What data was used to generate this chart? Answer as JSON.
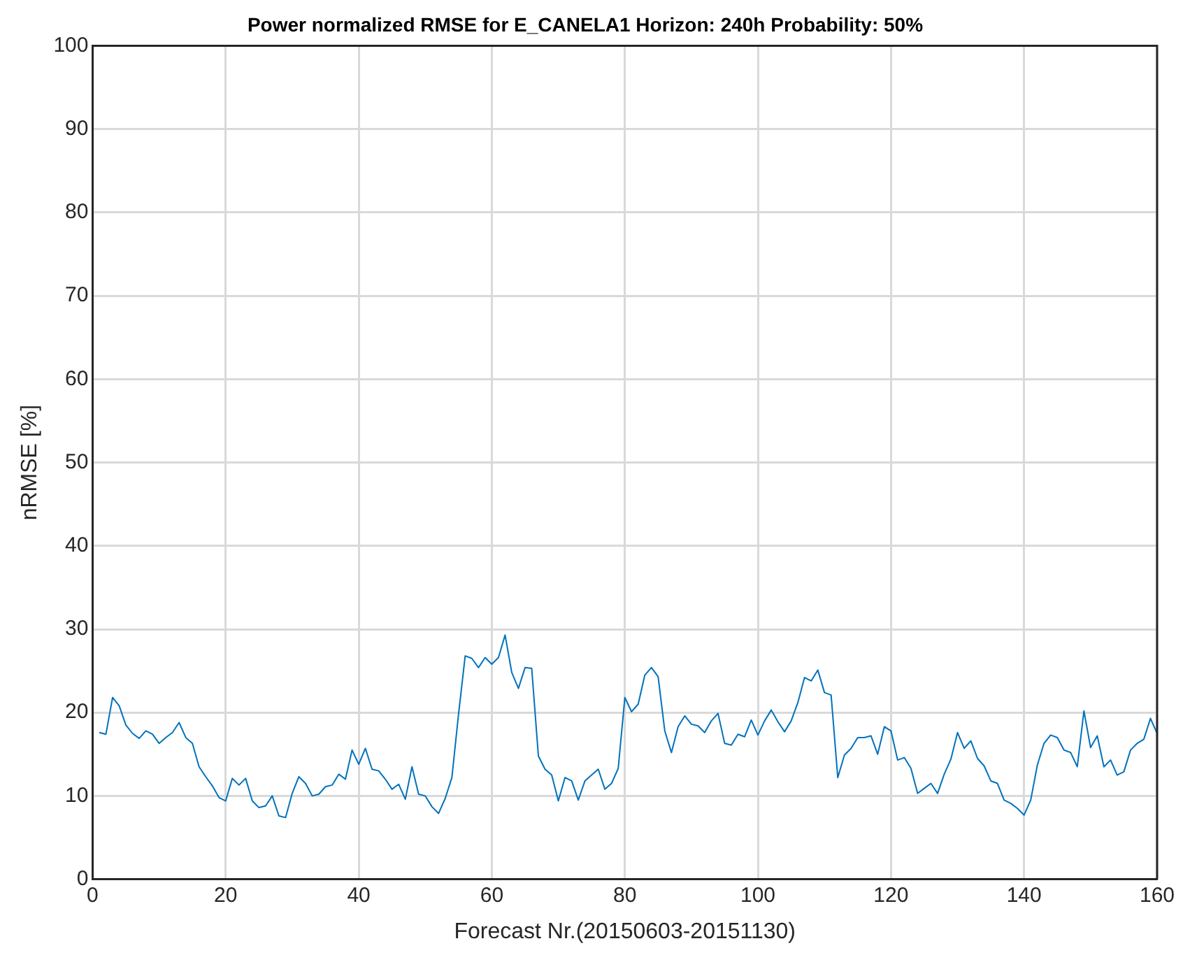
{
  "chart_data": {
    "type": "line",
    "title": "Power normalized RMSE for E_CANELA1 Horizon: 240h Probability: 50%",
    "xlabel": "Forecast Nr.(20150603-20151130)",
    "ylabel": "nRMSE [%]",
    "x": [
      1,
      2,
      3,
      4,
      5,
      6,
      7,
      8,
      9,
      10,
      11,
      12,
      13,
      14,
      15,
      16,
      17,
      18,
      19,
      20,
      21,
      22,
      23,
      24,
      25,
      26,
      27,
      28,
      29,
      30,
      31,
      32,
      33,
      34,
      35,
      36,
      37,
      38,
      39,
      40,
      41,
      42,
      43,
      44,
      45,
      46,
      47,
      48,
      49,
      50,
      51,
      52,
      53,
      54,
      55,
      56,
      57,
      58,
      59,
      60,
      61,
      62,
      63,
      64,
      65,
      66,
      67,
      68,
      69,
      70,
      71,
      72,
      73,
      74,
      75,
      76,
      77,
      78,
      79,
      80,
      81,
      82,
      83,
      84,
      85,
      86,
      87,
      88,
      89,
      90,
      91,
      92,
      93,
      94,
      95,
      96,
      97,
      98,
      99,
      100,
      101,
      102,
      103,
      104,
      105,
      106,
      107,
      108,
      109,
      110,
      111,
      112,
      113,
      114,
      115,
      116,
      117,
      118,
      119,
      120,
      121,
      122,
      123,
      124,
      125,
      126,
      127,
      128,
      129,
      130,
      131,
      132,
      133,
      134,
      135,
      136,
      137,
      138,
      139,
      140,
      141,
      142,
      143,
      144,
      145,
      146,
      147,
      148,
      149,
      150,
      151,
      152,
      153,
      154,
      155,
      156,
      157,
      158,
      159,
      160
    ],
    "series": [
      {
        "color": "#0072bd",
        "values": [
          17.6,
          17.4,
          21.8,
          20.8,
          18.5,
          17.5,
          16.9,
          17.8,
          17.4,
          16.3,
          17.0,
          17.6,
          18.8,
          17.0,
          16.3,
          13.5,
          12.3,
          11.2,
          9.8,
          9.4,
          12.1,
          11.3,
          12.1,
          9.4,
          8.6,
          8.8,
          10.0,
          7.6,
          7.4,
          10.3,
          12.3,
          11.5,
          10.0,
          10.2,
          11.1,
          11.3,
          12.6,
          12.0,
          15.5,
          13.8,
          15.7,
          13.2,
          13.0,
          12.0,
          10.8,
          11.4,
          9.6,
          13.5,
          10.2,
          10.0,
          8.7,
          7.9,
          9.7,
          12.2,
          19.8,
          26.8,
          26.5,
          25.4,
          26.6,
          25.8,
          26.6,
          29.3,
          24.8,
          22.9,
          25.4,
          25.3,
          14.8,
          13.2,
          12.5,
          9.4,
          12.2,
          11.8,
          9.5,
          11.8,
          12.5,
          13.2,
          10.8,
          11.5,
          13.3,
          21.8,
          20.1,
          21.0,
          24.5,
          25.4,
          24.3,
          17.8,
          15.2,
          18.3,
          19.6,
          18.6,
          18.4,
          17.6,
          19.0,
          19.9,
          16.3,
          16.1,
          17.4,
          17.1,
          19.1,
          17.3,
          19.0,
          20.3,
          18.9,
          17.7,
          19.0,
          21.2,
          24.2,
          23.8,
          25.1,
          22.4,
          22.1,
          12.2,
          14.9,
          15.7,
          17.0,
          17.0,
          17.2,
          15.0,
          18.3,
          17.8,
          14.3,
          14.6,
          13.3,
          10.3,
          10.9,
          11.5,
          10.3,
          12.6,
          14.4,
          17.6,
          15.7,
          16.6,
          14.5,
          13.6,
          11.8,
          11.5,
          9.5,
          9.1,
          8.5,
          7.7,
          9.5,
          13.7,
          16.3,
          17.3,
          17.0,
          15.5,
          15.2,
          13.5,
          20.2,
          15.8,
          17.2,
          13.5,
          14.3,
          12.5,
          12.9,
          15.5,
          16.3,
          16.8,
          19.3,
          17.5
        ]
      }
    ],
    "xlim": [
      0,
      160
    ],
    "xticks": [
      0,
      20,
      40,
      60,
      80,
      100,
      120,
      140,
      160
    ],
    "ylim": [
      0,
      100
    ],
    "yticks": [
      0,
      10,
      20,
      30,
      40,
      50,
      60,
      70,
      80,
      90,
      100
    ],
    "grid": true,
    "legend": false,
    "marker": "none",
    "line_style": "solid"
  }
}
